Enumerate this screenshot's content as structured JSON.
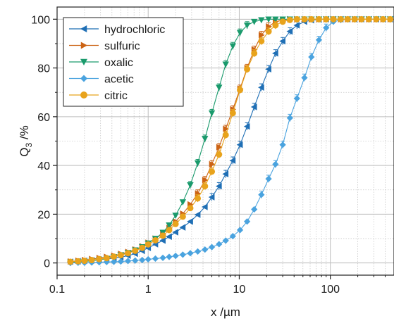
{
  "chart_data": {
    "type": "line",
    "xlabel": "x /µm",
    "ylabel_main": "Q",
    "ylabel_sub": "3",
    "ylabel_tail": " /%",
    "xscale": "log",
    "xlim": [
      0.1,
      500
    ],
    "ylim": [
      -5,
      105
    ],
    "x_ticks": [
      {
        "value": 0.1,
        "label": "0.1"
      },
      {
        "value": 1,
        "label": "1"
      },
      {
        "value": 10,
        "label": "10"
      },
      {
        "value": 100,
        "label": "100"
      }
    ],
    "y_ticks": [
      {
        "value": 0,
        "label": "0"
      },
      {
        "value": 20,
        "label": "20"
      },
      {
        "value": 40,
        "label": "40"
      },
      {
        "value": 60,
        "label": "60"
      },
      {
        "value": 80,
        "label": "80"
      },
      {
        "value": 100,
        "label": "100"
      }
    ],
    "grid": true,
    "legend_position": "top-left",
    "series": [
      {
        "name": "hydrochloric",
        "color": "#1f6fb5",
        "marker": "triangle-left",
        "x": [
          0.14,
          0.17,
          0.2,
          0.24,
          0.29,
          0.35,
          0.42,
          0.5,
          0.6,
          0.72,
          0.86,
          1.0,
          1.2,
          1.45,
          1.7,
          2.0,
          2.4,
          2.9,
          3.5,
          4.2,
          5.0,
          6.0,
          7.1,
          8.5,
          10.2,
          12.2,
          14.6,
          17.5,
          21,
          25,
          30,
          36,
          43,
          52,
          62,
          75,
          90,
          108,
          130,
          155,
          185,
          220,
          265,
          320,
          380,
          455
        ],
        "y": [
          0.5,
          0.7,
          0.9,
          1.1,
          1.4,
          1.7,
          2.0,
          2.4,
          3.0,
          3.8,
          5.0,
          6.2,
          7.7,
          9.2,
          10.8,
          12.6,
          14.6,
          17.0,
          19.8,
          23.0,
          27.0,
          31.5,
          36.5,
          42.0,
          48.5,
          56.0,
          64.0,
          72.0,
          79.5,
          86.0,
          91.0,
          95.0,
          97.5,
          99.0,
          99.6,
          99.9,
          100,
          100,
          100,
          100,
          100,
          100,
          100,
          100,
          100,
          100
        ]
      },
      {
        "name": "sulfuric",
        "color": "#cc6314",
        "marker": "triangle-right",
        "x": [
          0.14,
          0.17,
          0.2,
          0.24,
          0.29,
          0.35,
          0.42,
          0.5,
          0.6,
          0.72,
          0.86,
          1.0,
          1.2,
          1.45,
          1.7,
          2.0,
          2.4,
          2.9,
          3.5,
          4.2,
          5.0,
          6.0,
          7.1,
          8.5,
          10.2,
          12.2,
          14.6,
          17.5,
          21,
          25,
          30,
          36,
          43,
          52,
          62,
          75,
          90,
          108,
          130,
          155,
          185,
          220,
          265,
          320,
          380,
          455
        ],
        "y": [
          0.6,
          0.9,
          1.2,
          1.6,
          2.0,
          2.5,
          3.0,
          3.7,
          4.5,
          5.5,
          6.8,
          8.3,
          10.0,
          12.0,
          14.3,
          17.0,
          20.2,
          24.0,
          28.5,
          34.0,
          40.5,
          47.5,
          55.0,
          63.0,
          71.5,
          80.0,
          87.5,
          93.5,
          97.0,
          99.0,
          99.7,
          100,
          100,
          100,
          100,
          100,
          100,
          100,
          100,
          100,
          100,
          100,
          100,
          100,
          100,
          100
        ]
      },
      {
        "name": "oxalic",
        "color": "#1a9a6c",
        "marker": "triangle-down",
        "x": [
          0.14,
          0.17,
          0.2,
          0.24,
          0.29,
          0.35,
          0.42,
          0.5,
          0.6,
          0.72,
          0.86,
          1.0,
          1.2,
          1.45,
          1.7,
          2.0,
          2.4,
          2.9,
          3.5,
          4.2,
          5.0,
          6.0,
          7.1,
          8.5,
          10.2,
          12.2,
          14.6,
          17.5,
          21,
          25,
          30,
          36,
          43,
          52,
          62,
          75,
          90,
          108,
          130,
          155,
          185,
          220,
          265,
          320,
          380,
          455
        ],
        "y": [
          0.3,
          0.4,
          0.6,
          0.9,
          1.3,
          1.8,
          2.5,
          3.3,
          4.2,
          5.3,
          6.6,
          8.1,
          10.0,
          12.5,
          15.5,
          19.5,
          25.0,
          32.0,
          41.0,
          51.0,
          61.5,
          72.0,
          81.5,
          89.0,
          94.5,
          97.5,
          99.0,
          99.7,
          100,
          100,
          100,
          100,
          100,
          100,
          100,
          100,
          100,
          100,
          100,
          100,
          100,
          100,
          100,
          100,
          100,
          100
        ]
      },
      {
        "name": "acetic",
        "color": "#4aa3df",
        "marker": "diamond",
        "x": [
          0.14,
          0.17,
          0.2,
          0.24,
          0.29,
          0.35,
          0.42,
          0.5,
          0.6,
          0.72,
          0.86,
          1.0,
          1.2,
          1.45,
          1.7,
          2.0,
          2.4,
          2.9,
          3.5,
          4.2,
          5.0,
          6.0,
          7.1,
          8.5,
          10.2,
          12.2,
          14.6,
          17.5,
          21,
          25,
          30,
          36,
          43,
          52,
          62,
          75,
          90,
          108,
          130,
          155,
          185,
          220,
          265,
          320,
          380,
          455
        ],
        "y": [
          0.0,
          0.1,
          0.1,
          0.2,
          0.3,
          0.4,
          0.5,
          0.6,
          0.8,
          1.0,
          1.2,
          1.5,
          1.8,
          2.1,
          2.5,
          2.9,
          3.4,
          4.0,
          4.7,
          5.5,
          6.5,
          7.7,
          9.2,
          11.0,
          13.5,
          17.0,
          22.0,
          28.0,
          34.5,
          40.5,
          48.5,
          59.5,
          67.5,
          76.0,
          84.5,
          91.5,
          96.5,
          99.0,
          99.7,
          100,
          100,
          100,
          100,
          100,
          100,
          100
        ]
      },
      {
        "name": "citric",
        "color": "#e8a31c",
        "marker": "circle",
        "x": [
          0.14,
          0.17,
          0.2,
          0.24,
          0.29,
          0.35,
          0.42,
          0.5,
          0.6,
          0.72,
          0.86,
          1.0,
          1.2,
          1.45,
          1.7,
          2.0,
          2.4,
          2.9,
          3.5,
          4.2,
          5.0,
          6.0,
          7.1,
          8.5,
          10.2,
          12.2,
          14.6,
          17.5,
          21,
          25,
          30,
          36,
          43,
          52,
          62,
          75,
          90,
          108,
          130,
          155,
          185,
          220,
          265,
          320,
          380,
          455
        ],
        "y": [
          0.5,
          0.7,
          0.9,
          1.2,
          1.6,
          2.0,
          2.6,
          3.2,
          4.0,
          5.0,
          6.2,
          7.6,
          9.3,
          11.2,
          13.5,
          16.0,
          19.0,
          22.5,
          26.5,
          31.5,
          37.5,
          44.5,
          52.5,
          61.5,
          71.0,
          79.5,
          86.0,
          91.0,
          95.0,
          97.5,
          99.0,
          99.7,
          100,
          100,
          100,
          100,
          100,
          100,
          100,
          100,
          100,
          100,
          100,
          100,
          100,
          100
        ]
      }
    ]
  }
}
